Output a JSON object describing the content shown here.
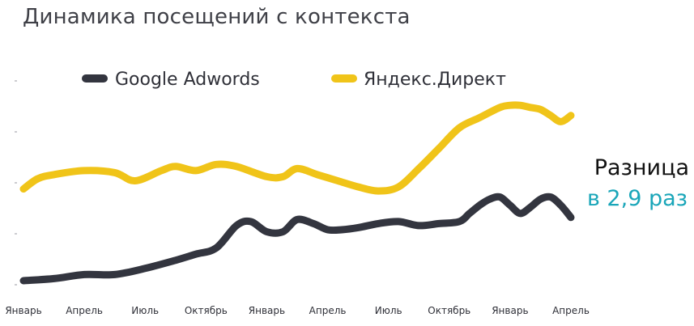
{
  "title": "Динамика посещений с контекста",
  "annotation": {
    "line1": "Разница",
    "line2": "в 2,9 раз"
  },
  "colors": {
    "google": "#33353f",
    "yandex": "#f0c419",
    "accent": "#1aa6b9"
  },
  "chart_data": {
    "type": "line",
    "title": "Динамика посещений с контекста",
    "xlabel": "",
    "ylabel": "",
    "y_tick_labels": false,
    "grid": false,
    "legend_position": "top",
    "x_labels": [
      "Январь",
      "Апрель",
      "Июль",
      "Октябрь",
      "Январь",
      "Апрель",
      "Июль",
      "Октябрь",
      "Январь",
      "Апрель"
    ],
    "x": [
      0,
      3,
      6,
      9,
      12,
      15,
      18,
      21,
      24,
      27
    ],
    "ylim": [
      0,
      100
    ],
    "series": [
      {
        "name": "Google Adwords",
        "color": "#33353f",
        "x": [
          0,
          1.5,
          3,
          4.5,
          6,
          7.5,
          8.5,
          9.5,
          10.5,
          11.2,
          12,
          12.8,
          13.5,
          14.3,
          15,
          15.7,
          16.5,
          17.5,
          18.5,
          19.5,
          20.5,
          21.5,
          22,
          22.5,
          23,
          23.5,
          24,
          24.5,
          25,
          25.5,
          26,
          26.5,
          27
        ],
        "values": [
          2,
          3,
          5,
          5,
          8,
          12,
          15,
          18,
          29,
          31,
          26,
          26,
          32,
          30,
          27,
          27,
          28,
          30,
          31,
          29,
          30,
          31,
          35,
          39,
          42,
          43,
          39,
          35,
          38,
          42,
          43,
          39,
          33
        ]
      },
      {
        "name": "Яндекс.Директ",
        "color": "#f0c419",
        "x": [
          0,
          0.7,
          1.5,
          3,
          4.5,
          5.5,
          6.8,
          7.5,
          8.5,
          9.5,
          10.5,
          12,
          12.8,
          13.5,
          14.5,
          15.5,
          16.5,
          17.5,
          18.5,
          19.5,
          20.5,
          21.5,
          22.5,
          23.5,
          24,
          24.5,
          25,
          25.5,
          26,
          26.5,
          27
        ],
        "values": [
          47,
          52,
          54,
          56,
          55,
          51,
          56,
          58,
          56,
          59,
          58,
          53,
          53,
          57,
          54,
          51,
          48,
          46,
          48,
          57,
          67,
          77,
          82,
          87,
          88,
          88,
          87,
          86,
          83,
          80,
          83
        ]
      }
    ]
  }
}
